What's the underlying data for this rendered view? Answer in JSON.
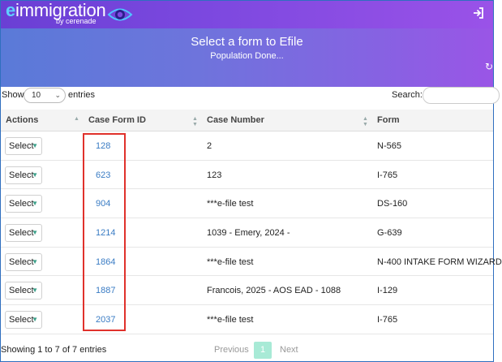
{
  "header": {
    "logo_main": "immigration",
    "logo_e": "e",
    "logo_sub": "by cerenade",
    "logout_icon": "logout-icon"
  },
  "banner": {
    "title": "Select a form to Efile",
    "subtitle": "Population Done..."
  },
  "controls": {
    "show_label": "Show",
    "page_length": "10",
    "entries_label": "entries",
    "search_label": "Search:",
    "search_value": ""
  },
  "table": {
    "columns": [
      "Actions",
      "Case Form ID",
      "Case Number",
      "Form"
    ],
    "select_label": "Select",
    "rows": [
      {
        "id": "128",
        "case_number": "2",
        "form": "N-565"
      },
      {
        "id": "623",
        "case_number": "123",
        "form": "I-765"
      },
      {
        "id": "904",
        "case_number": "***e-file test",
        "form": "DS-160"
      },
      {
        "id": "1214",
        "case_number": "1039 - Emery, 2024 -",
        "form": "G-639"
      },
      {
        "id": "1864",
        "case_number": "***e-file test",
        "form": "N-400 INTAKE FORM WIZARD"
      },
      {
        "id": "1887",
        "case_number": "Francois, 2025 - AOS EAD - 1088",
        "form": "I-129"
      },
      {
        "id": "2037",
        "case_number": "***e-file test",
        "form": "I-765"
      }
    ]
  },
  "footer": {
    "info": "Showing 1 to 7 of 7 entries",
    "previous": "Previous",
    "current_page": "1",
    "next": "Next"
  },
  "colors": {
    "highlight": "#e0312b",
    "link": "#3a7cc4",
    "active_page": "#a8ead6"
  }
}
